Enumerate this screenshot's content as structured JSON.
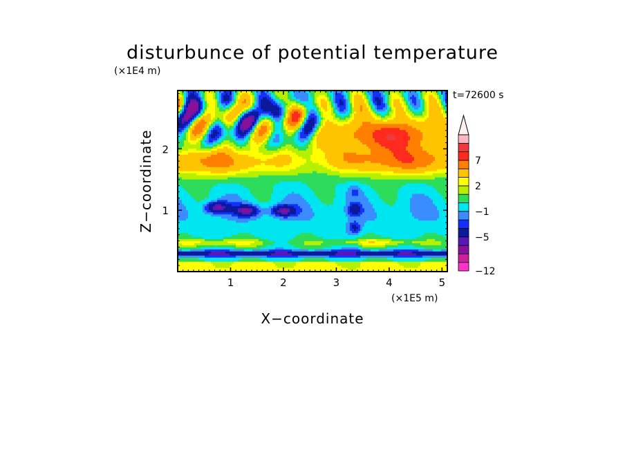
{
  "chart_data": {
    "type": "heatmap",
    "title": "disturbunce of potential temperature",
    "xlabel": "X−coordinate",
    "ylabel": "Z−coordinate",
    "x_unit": "(×1E5 m)",
    "y_unit": "(×1E4 m)",
    "time_label": "t=72600 s",
    "xlim": [
      0,
      5.1
    ],
    "ylim": [
      0,
      2.95
    ],
    "x_ticks": [
      1,
      2,
      3,
      4,
      5
    ],
    "y_ticks": [
      1,
      2
    ],
    "colorbar": {
      "levels": [
        -12,
        -10,
        -8,
        -6,
        -5,
        -3,
        -2,
        -1,
        0,
        1,
        2,
        3,
        5,
        7,
        9,
        11
      ],
      "colors": [
        "#ff33cc",
        "#cc2299",
        "#881199",
        "#5a17b8",
        "#0b1a9a",
        "#1430ff",
        "#3a8cff",
        "#00e6f0",
        "#2ddc5a",
        "#b4f000",
        "#ffff00",
        "#ffc400",
        "#ff8000",
        "#ff2a1e",
        "#ee3a3a",
        "#ffb6c1"
      ],
      "tick_labels": [
        {
          "value": -12,
          "text": "−12"
        },
        {
          "value": -5,
          "text": "−5"
        },
        {
          "value": -1,
          "text": "−1"
        },
        {
          "value": 2,
          "text": "2"
        },
        {
          "value": 7,
          "text": "7"
        }
      ],
      "arrow_color": "#fff0f0"
    },
    "features": {
      "surface_layer": {
        "z_range": [
          0,
          0.18
        ],
        "value": 2
      },
      "cold_layer_low": {
        "z_center": 0.3,
        "value": -5
      },
      "warm_band_low": {
        "z_center": 0.48,
        "value": 2
      },
      "cold_blobs_mid": [
        {
          "x": 0.75,
          "z": 1.05,
          "value": -5
        },
        {
          "x": 1.3,
          "z": 1.0,
          "value": -5
        },
        {
          "x": 2.0,
          "z": 1.0,
          "value": -5
        }
      ],
      "warm_upper_band": {
        "z_center": 1.8,
        "value": 5
      },
      "upper_wave_region": {
        "x_range": [
          0,
          2.5
        ],
        "z_range": [
          2.0,
          2.95
        ],
        "min": -10,
        "max": 9
      },
      "warm_upper_right": {
        "x": 4.0,
        "z": 2.2,
        "value": 9
      }
    }
  }
}
